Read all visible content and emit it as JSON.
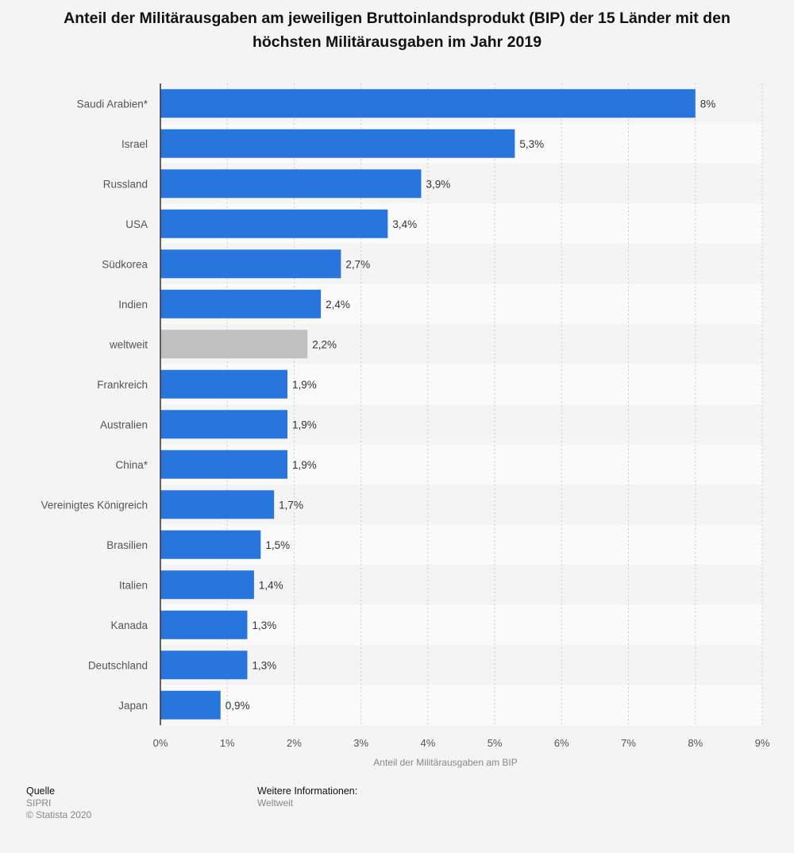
{
  "chart_data": {
    "type": "bar",
    "orientation": "horizontal",
    "title": "Anteil der Militärausgaben am jeweiligen Bruttoinlandsprodukt (BIP) der 15 Länder mit den höchsten Militärausgaben im Jahr 2019",
    "categories": [
      "Saudi Arabien*",
      "Israel",
      "Russland",
      "USA",
      "Südkorea",
      "Indien",
      "weltweit",
      "Frankreich",
      "Australien",
      "China*",
      "Vereinigtes Königreich",
      "Brasilien",
      "Italien",
      "Kanada",
      "Deutschland",
      "Japan"
    ],
    "values": [
      8,
      5.3,
      3.9,
      3.4,
      2.7,
      2.4,
      2.2,
      1.9,
      1.9,
      1.9,
      1.7,
      1.5,
      1.4,
      1.3,
      1.3,
      0.9
    ],
    "data_labels": [
      "8%",
      "5,3%",
      "3,9%",
      "3,4%",
      "2,7%",
      "2,4%",
      "2,2%",
      "1,9%",
      "1,9%",
      "1,9%",
      "1,7%",
      "1,5%",
      "1,4%",
      "1,3%",
      "1,3%",
      "0,9%"
    ],
    "highlight_category": "weltweit",
    "xlabel": "Anteil der Militärausgaben am BIP",
    "ylabel": "",
    "xlim": [
      0,
      9
    ],
    "xticks": [
      "0%",
      "1%",
      "2%",
      "3%",
      "4%",
      "5%",
      "6%",
      "7%",
      "8%",
      "9%"
    ],
    "grid": true,
    "colors": {
      "bar": "#2876dd",
      "highlight": "#c0c0c0",
      "axis": "#333333"
    }
  },
  "footer": {
    "source_heading": "Quelle",
    "source": "SIPRI",
    "copyright": "© Statista 2020",
    "info_heading": "Weitere Informationen:",
    "info": "Weltweit"
  }
}
